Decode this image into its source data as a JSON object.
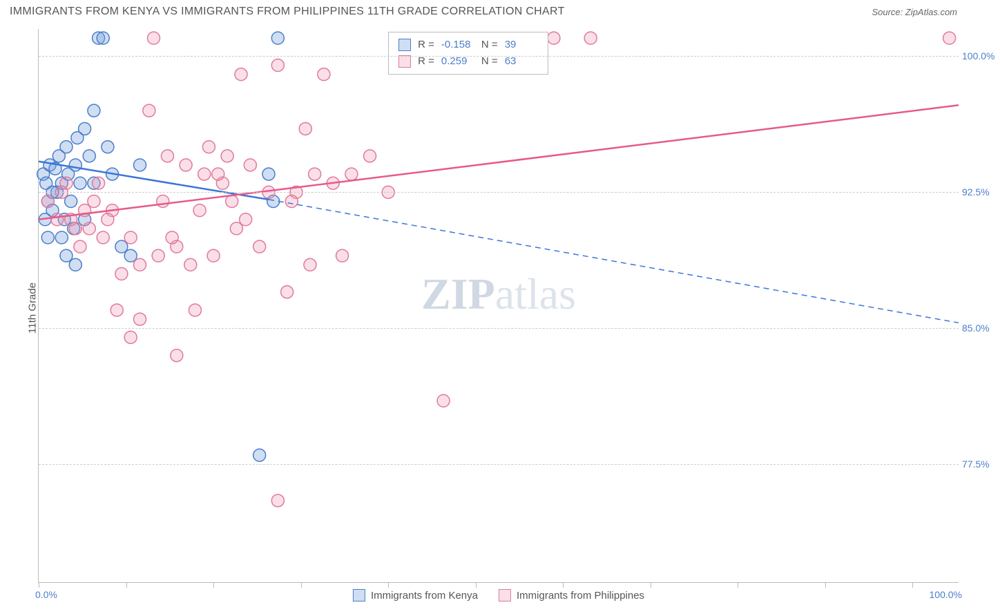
{
  "title": "IMMIGRANTS FROM KENYA VS IMMIGRANTS FROM PHILIPPINES 11TH GRADE CORRELATION CHART",
  "source": "Source: ZipAtlas.com",
  "ylabel": "11th Grade",
  "xaxis": {
    "min_label": "0.0%",
    "max_label": "100.0%",
    "min": 0,
    "max": 100,
    "tick_pcts": [
      0,
      9.5,
      19,
      28.5,
      38,
      47.5,
      57,
      66.5,
      76,
      85.5,
      95
    ]
  },
  "yaxis": {
    "min": 71,
    "max": 101.5,
    "ticks": [
      {
        "value": 100,
        "label": "100.0%"
      },
      {
        "value": 92.5,
        "label": "92.5%"
      },
      {
        "value": 85,
        "label": "85.0%"
      },
      {
        "value": 77.5,
        "label": "77.5%"
      }
    ],
    "grid_color": "#cccccc"
  },
  "colors": {
    "blue_stroke": "#4a7ec9",
    "blue_fill": "rgba(120,160,220,0.35)",
    "pink_stroke": "#e07a9a",
    "pink_fill": "rgba(240,150,180,0.30)",
    "blue_line": "#3a76d6",
    "pink_line": "#e65a8a",
    "text": "#555555"
  },
  "series": [
    {
      "key": "kenya",
      "label": "Immigrants from Kenya",
      "color_key": "blue",
      "R": "-0.158",
      "N": "39",
      "line": {
        "x1": 0,
        "y1": 94.2,
        "x2": 25,
        "y2": 92.1,
        "style": "solid"
      },
      "line_ext": {
        "x1": 25,
        "y1": 92.1,
        "x2": 100,
        "y2": 85.3,
        "style": "dashed"
      },
      "points": [
        [
          0.5,
          93.5
        ],
        [
          0.8,
          93.0
        ],
        [
          1.0,
          92.0
        ],
        [
          1.2,
          94.0
        ],
        [
          1.5,
          91.5
        ],
        [
          1.8,
          93.8
        ],
        [
          2.0,
          92.5
        ],
        [
          2.2,
          94.5
        ],
        [
          2.5,
          93.0
        ],
        [
          2.8,
          91.0
        ],
        [
          3.0,
          95.0
        ],
        [
          3.2,
          93.5
        ],
        [
          3.5,
          92.0
        ],
        [
          3.8,
          90.5
        ],
        [
          4.0,
          94.0
        ],
        [
          4.2,
          95.5
        ],
        [
          4.5,
          93.0
        ],
        [
          5.0,
          96.0
        ],
        [
          5.5,
          94.5
        ],
        [
          6.0,
          97.0
        ],
        [
          6.5,
          101.0
        ],
        [
          7.0,
          101.0
        ],
        [
          7.5,
          95.0
        ],
        [
          8.0,
          93.5
        ],
        [
          3.0,
          89.0
        ],
        [
          9.0,
          89.5
        ],
        [
          5.0,
          91.0
        ],
        [
          6.0,
          93.0
        ],
        [
          10.0,
          89.0
        ],
        [
          11.0,
          94.0
        ],
        [
          4.0,
          88.5
        ],
        [
          25.0,
          93.5
        ],
        [
          26.0,
          101.0
        ],
        [
          25.5,
          92.0
        ],
        [
          24.0,
          78.0
        ],
        [
          1.0,
          90.0
        ],
        [
          2.5,
          90.0
        ],
        [
          1.5,
          92.5
        ],
        [
          0.7,
          91.0
        ]
      ]
    },
    {
      "key": "philippines",
      "label": "Immigrants from Philippines",
      "color_key": "pink",
      "R": "0.259",
      "N": "63",
      "line": {
        "x1": 0,
        "y1": 91.0,
        "x2": 100,
        "y2": 97.3,
        "style": "solid"
      },
      "points": [
        [
          1.0,
          92.0
        ],
        [
          2.0,
          91.0
        ],
        [
          3.0,
          93.0
        ],
        [
          4.0,
          90.5
        ],
        [
          5.0,
          91.5
        ],
        [
          6.0,
          92.0
        ],
        [
          7.0,
          90.0
        ],
        [
          8.0,
          91.5
        ],
        [
          9.0,
          88.0
        ],
        [
          10.0,
          90.0
        ],
        [
          11.0,
          88.5
        ],
        [
          12.0,
          97.0
        ],
        [
          13.0,
          89.0
        ],
        [
          14.0,
          94.5
        ],
        [
          15.0,
          89.5
        ],
        [
          16.0,
          94.0
        ],
        [
          17.0,
          86.0
        ],
        [
          18.0,
          93.5
        ],
        [
          19.0,
          89.0
        ],
        [
          20.0,
          93.0
        ],
        [
          21.0,
          92.0
        ],
        [
          22.0,
          99.0
        ],
        [
          23.0,
          94.0
        ],
        [
          24.0,
          89.5
        ],
        [
          25.0,
          92.5
        ],
        [
          26.0,
          99.5
        ],
        [
          27.0,
          87.0
        ],
        [
          28.0,
          92.5
        ],
        [
          29.0,
          96.0
        ],
        [
          30.0,
          93.5
        ],
        [
          31.0,
          99.0
        ],
        [
          32.0,
          93.0
        ],
        [
          33.0,
          89.0
        ],
        [
          34.0,
          93.5
        ],
        [
          36.0,
          94.5
        ],
        [
          38.0,
          92.5
        ],
        [
          26.0,
          75.5
        ],
        [
          10.0,
          84.5
        ],
        [
          15.0,
          83.5
        ],
        [
          11.0,
          85.5
        ],
        [
          8.5,
          86.0
        ],
        [
          12.5,
          101.0
        ],
        [
          44.0,
          81.0
        ],
        [
          56.0,
          101.0
        ],
        [
          60.0,
          101.0
        ],
        [
          99.0,
          101.0
        ],
        [
          2.5,
          92.5
        ],
        [
          3.5,
          91.0
        ],
        [
          4.5,
          89.5
        ],
        [
          5.5,
          90.5
        ],
        [
          6.5,
          93.0
        ],
        [
          7.5,
          91.0
        ],
        [
          13.5,
          92.0
        ],
        [
          14.5,
          90.0
        ],
        [
          16.5,
          88.5
        ],
        [
          17.5,
          91.5
        ],
        [
          18.5,
          95.0
        ],
        [
          19.5,
          93.5
        ],
        [
          20.5,
          94.5
        ],
        [
          21.5,
          90.5
        ],
        [
          22.5,
          91.0
        ],
        [
          27.5,
          92.0
        ],
        [
          29.5,
          88.5
        ]
      ]
    }
  ],
  "legend": {
    "R_label": "R =",
    "N_label": "N ="
  },
  "watermark": {
    "zip": "ZIP",
    "atlas": "atlas"
  },
  "marker": {
    "radius": 9,
    "stroke_width": 1.5,
    "line_width": 2.5
  }
}
